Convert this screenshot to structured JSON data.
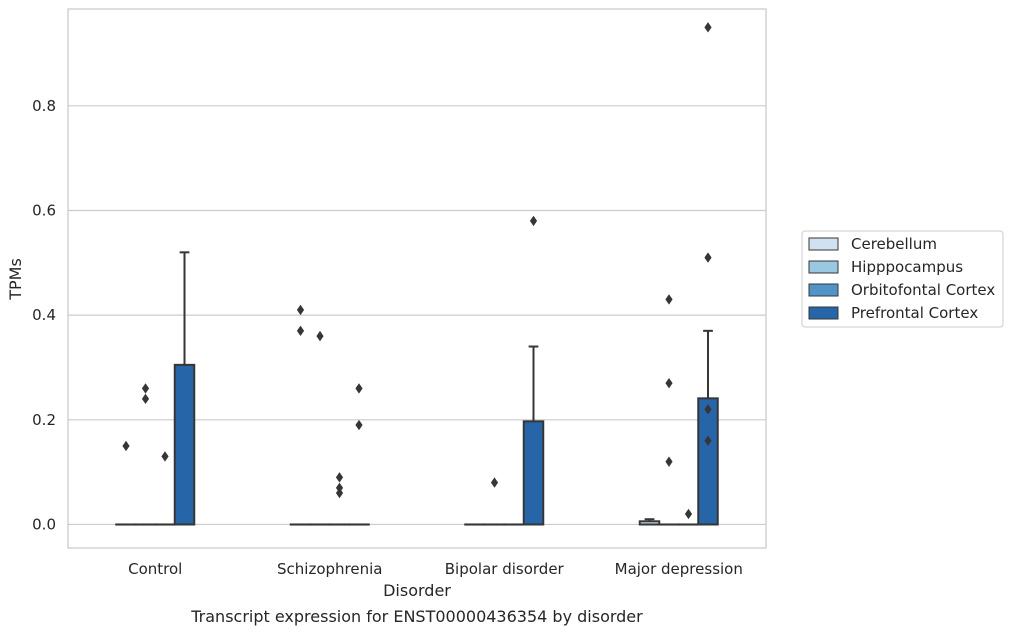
{
  "chart_data": {
    "type": "box",
    "caption": "Transcript expression for ENST00000436354 by disorder",
    "xlabel": "Disorder",
    "ylabel": "TPMs",
    "ylim": [
      -0.045,
      0.985
    ],
    "yticks": [
      "0.0",
      "0.2",
      "0.4",
      "0.6",
      "0.8"
    ],
    "ytick_values": [
      0.0,
      0.2,
      0.4,
      0.6,
      0.8
    ],
    "grid": true,
    "legend_position": "right",
    "categories": [
      "Control",
      "Schizophrenia",
      "Bipolar disorder",
      "Major depression"
    ],
    "series": [
      {
        "name": "Cerebellum",
        "color": "#d0e1f2",
        "boxes": [
          {
            "q1": 0,
            "median": 0,
            "q3": 0,
            "whisker_low": 0,
            "whisker_high": 0,
            "outliers": [
              0.15
            ]
          },
          {
            "q1": 0,
            "median": 0,
            "q3": 0,
            "whisker_low": 0,
            "whisker_high": 0,
            "outliers": [
              0.41,
              0.37
            ]
          },
          {
            "q1": 0,
            "median": 0,
            "q3": 0,
            "whisker_low": 0,
            "whisker_high": 0,
            "outliers": []
          },
          {
            "q1": 0,
            "median": 0,
            "q3": 0.006,
            "whisker_low": 0,
            "whisker_high": 0.01,
            "outliers": []
          }
        ]
      },
      {
        "name": "Hipppocampus",
        "color": "#9ac8e0",
        "boxes": [
          {
            "q1": 0,
            "median": 0,
            "q3": 0,
            "whisker_low": 0,
            "whisker_high": 0,
            "outliers": [
              0.26,
              0.24
            ]
          },
          {
            "q1": 0,
            "median": 0,
            "q3": 0,
            "whisker_low": 0,
            "whisker_high": 0,
            "outliers": [
              0.36
            ]
          },
          {
            "q1": 0,
            "median": 0,
            "q3": 0,
            "whisker_low": 0,
            "whisker_high": 0,
            "outliers": [
              0.08
            ]
          },
          {
            "q1": 0,
            "median": 0,
            "q3": 0,
            "whisker_low": 0,
            "whisker_high": 0,
            "outliers": [
              0.43,
              0.27,
              0.12
            ]
          }
        ]
      },
      {
        "name": "Orbitofontal Cortex",
        "color": "#5195c8",
        "boxes": [
          {
            "q1": 0,
            "median": 0,
            "q3": 0,
            "whisker_low": 0,
            "whisker_high": 0,
            "outliers": [
              0.13
            ]
          },
          {
            "q1": 0,
            "median": 0,
            "q3": 0,
            "whisker_low": 0,
            "whisker_high": 0,
            "outliers": [
              0.09,
              0.07,
              0.06
            ]
          },
          {
            "q1": 0,
            "median": 0,
            "q3": 0,
            "whisker_low": 0,
            "whisker_high": 0,
            "outliers": []
          },
          {
            "q1": 0,
            "median": 0,
            "q3": 0,
            "whisker_low": 0,
            "whisker_high": 0,
            "outliers": [
              0.02
            ]
          }
        ]
      },
      {
        "name": "Prefrontal Cortex",
        "color": "#2666a8",
        "boxes": [
          {
            "q1": 0,
            "median": 0,
            "q3": 0.305,
            "whisker_low": 0,
            "whisker_high": 0.52,
            "outliers": []
          },
          {
            "q1": 0,
            "median": 0,
            "q3": 0,
            "whisker_low": 0,
            "whisker_high": 0,
            "outliers": [
              0.26,
              0.19
            ]
          },
          {
            "q1": 0,
            "median": 0,
            "q3": 0.197,
            "whisker_low": 0,
            "whisker_high": 0.34,
            "outliers": [
              0.58
            ]
          },
          {
            "q1": 0,
            "median": 0,
            "q3": 0.241,
            "whisker_low": 0,
            "whisker_high": 0.37,
            "outliers": [
              0.95,
              0.51,
              0.22,
              0.16
            ]
          }
        ]
      }
    ]
  }
}
